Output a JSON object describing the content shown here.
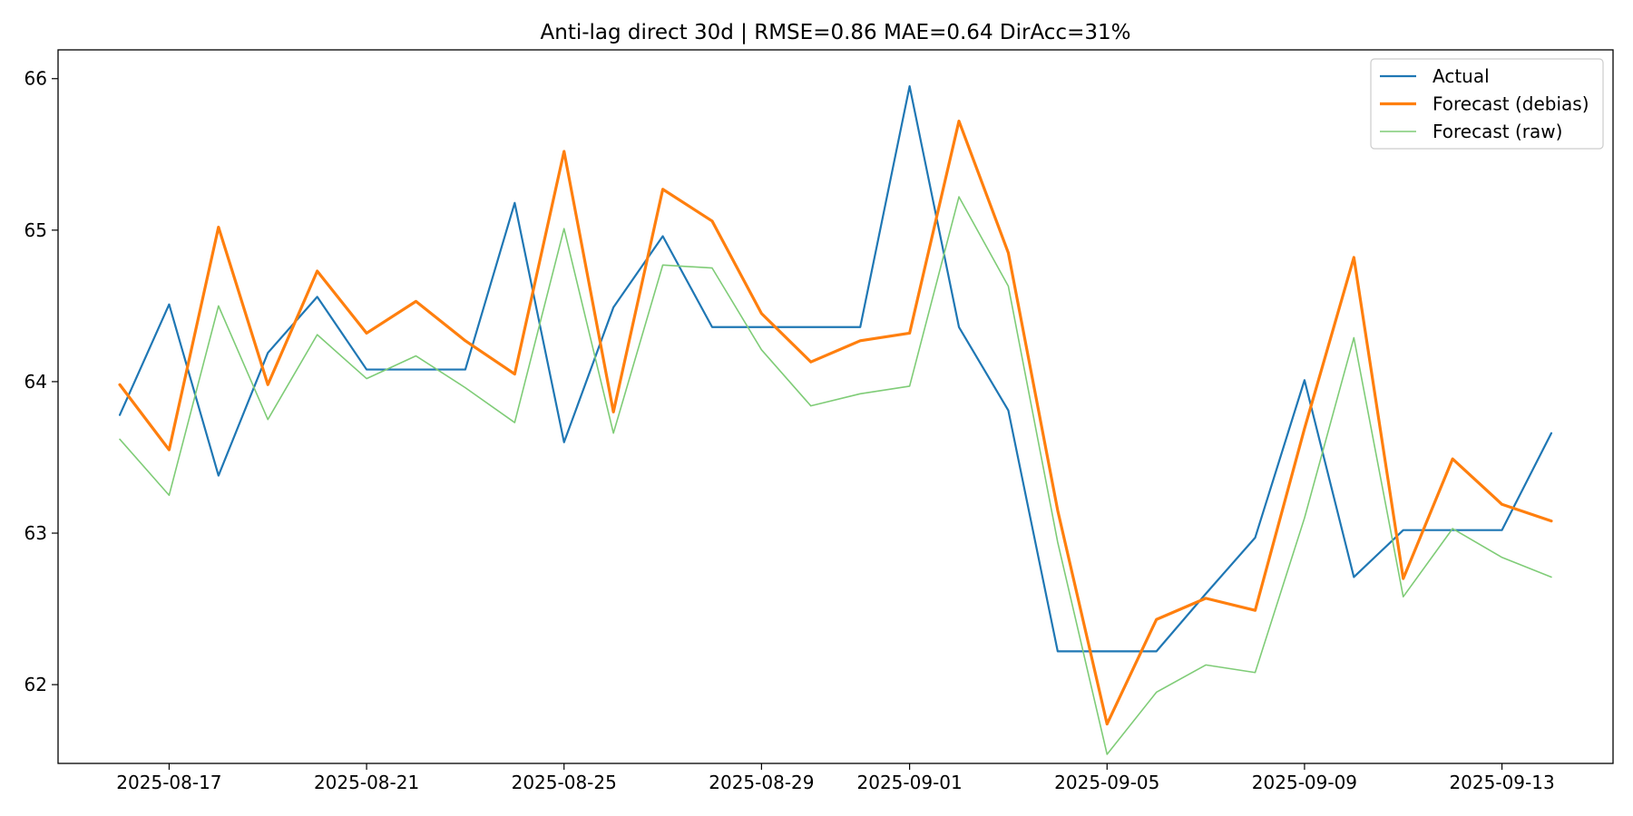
{
  "chart_data": {
    "type": "line",
    "title": "Anti-lag direct 30d | RMSE=0.86  MAE=0.64  DirAcc=31%",
    "xlabel": "",
    "ylabel": "",
    "x": [
      "2025-08-16",
      "2025-08-17",
      "2025-08-18",
      "2025-08-19",
      "2025-08-20",
      "2025-08-21",
      "2025-08-22",
      "2025-08-23",
      "2025-08-24",
      "2025-08-25",
      "2025-08-26",
      "2025-08-27",
      "2025-08-28",
      "2025-08-29",
      "2025-08-30",
      "2025-08-31",
      "2025-09-01",
      "2025-09-02",
      "2025-09-03",
      "2025-09-04",
      "2025-09-05",
      "2025-09-06",
      "2025-09-07",
      "2025-09-08",
      "2025-09-09",
      "2025-09-10",
      "2025-09-11",
      "2025-09-12",
      "2025-09-13",
      "2025-09-14"
    ],
    "x_ticks": [
      "2025-08-17",
      "2025-08-21",
      "2025-08-25",
      "2025-08-29",
      "2025-09-01",
      "2025-09-05",
      "2025-09-09",
      "2025-09-13"
    ],
    "y_ticks": [
      62,
      63,
      64,
      65,
      66
    ],
    "xlim": [
      "2025-08-14T18:00",
      "2025-09-15T06:00"
    ],
    "ylim": [
      61.48,
      66.19
    ],
    "grid": false,
    "legend_position": "top-right",
    "series": [
      {
        "name": "Actual",
        "color": "#1f77b4",
        "values": [
          63.78,
          64.51,
          63.38,
          64.19,
          64.56,
          64.08,
          64.08,
          64.08,
          65.18,
          63.6,
          64.49,
          64.96,
          64.36,
          64.36,
          64.36,
          64.36,
          65.95,
          64.36,
          63.81,
          62.22,
          62.22,
          62.22,
          62.6,
          62.97,
          64.01,
          62.71,
          63.02,
          63.02,
          63.02,
          63.66
        ]
      },
      {
        "name": "Forecast (debias)",
        "color": "#ff7f0e",
        "values": [
          63.98,
          63.55,
          65.02,
          63.98,
          64.73,
          64.32,
          64.53,
          64.27,
          64.05,
          65.52,
          63.8,
          65.27,
          65.06,
          64.45,
          64.13,
          64.27,
          64.32,
          65.72,
          64.85,
          63.15,
          61.74,
          62.43,
          62.57,
          62.49,
          63.69,
          64.82,
          62.7,
          63.49,
          63.19,
          63.08
        ]
      },
      {
        "name": "Forecast (raw)",
        "color": "#7fcc77",
        "values": [
          63.62,
          63.25,
          64.5,
          63.75,
          64.31,
          64.02,
          64.17,
          63.96,
          63.73,
          65.01,
          63.66,
          64.77,
          64.75,
          64.21,
          63.84,
          63.92,
          63.97,
          65.22,
          64.63,
          62.94,
          61.54,
          61.95,
          62.13,
          62.08,
          63.1,
          64.29,
          62.58,
          63.03,
          62.84,
          62.71
        ]
      }
    ]
  }
}
